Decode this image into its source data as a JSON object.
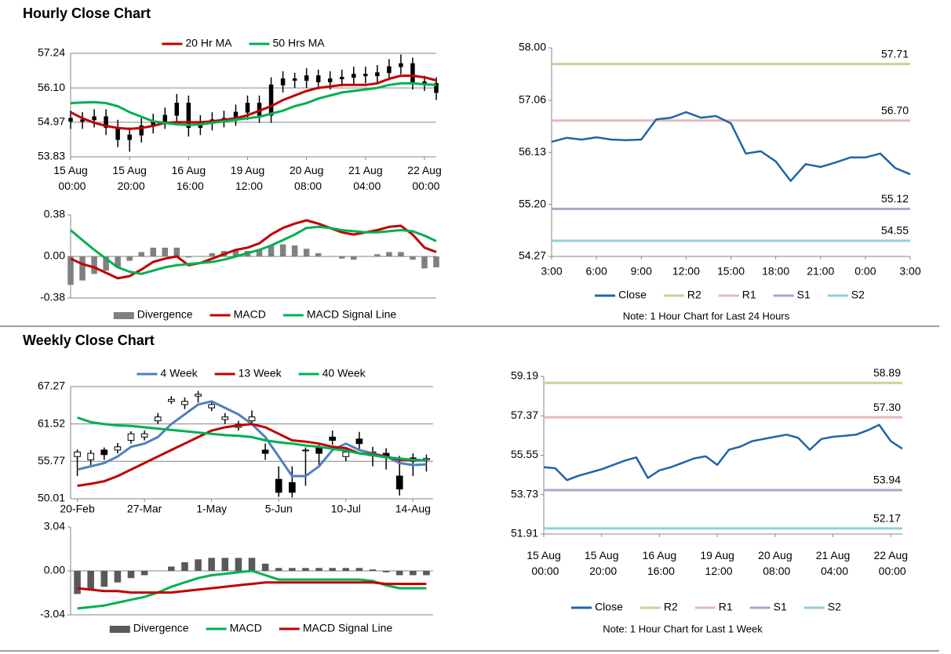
{
  "sections": [
    {
      "title": "Hourly Close Chart"
    },
    {
      "title": "Weekly Close Chart"
    }
  ],
  "chart_data": [
    {
      "type": "candlestick",
      "grid": true,
      "up_color": "#000000",
      "down_color": "#000000",
      "categories": [
        "15 Aug 00:00",
        null,
        null,
        null,
        null,
        "15 Aug 20:00",
        null,
        null,
        null,
        null,
        "16 Aug 16:00",
        null,
        null,
        null,
        null,
        "19 Aug 12:00",
        null,
        null,
        null,
        null,
        "20 Aug 08:00",
        null,
        null,
        null,
        null,
        "21 Aug 04:00",
        null,
        null,
        null,
        null,
        "22 Aug 00:00",
        null
      ],
      "open": [
        55.1,
        55.0,
        55.05,
        55.15,
        54.8,
        54.4,
        54.55,
        54.85,
        55.0,
        55.2,
        55.6,
        54.8,
        54.95,
        55.05,
        55.1,
        55.3,
        55.6,
        55.2,
        56.2,
        56.4,
        56.35,
        56.5,
        56.3,
        56.4,
        56.45,
        56.55,
        56.5,
        56.6,
        56.8,
        56.9,
        56.3,
        56.25
      ],
      "high": [
        55.35,
        55.3,
        55.4,
        55.4,
        55.05,
        54.8,
        55.1,
        55.25,
        55.45,
        55.9,
        55.85,
        55.2,
        55.3,
        55.35,
        55.55,
        55.85,
        55.85,
        56.45,
        56.65,
        56.6,
        56.75,
        56.7,
        56.65,
        56.7,
        56.8,
        56.8,
        56.85,
        57.05,
        57.2,
        57.1,
        56.5,
        56.45
      ],
      "low": [
        54.75,
        54.75,
        54.8,
        54.55,
        54.15,
        54.0,
        54.3,
        54.6,
        54.75,
        54.95,
        54.5,
        54.55,
        54.7,
        54.8,
        54.85,
        55.05,
        54.95,
        54.95,
        55.95,
        56.1,
        56.1,
        56.05,
        56.05,
        56.15,
        56.2,
        56.25,
        56.25,
        56.35,
        56.55,
        56.05,
        56.0,
        55.7
      ],
      "close": [
        55.0,
        55.05,
        55.15,
        54.8,
        54.4,
        54.55,
        54.85,
        55.0,
        55.2,
        55.6,
        54.8,
        54.95,
        55.05,
        55.1,
        55.3,
        55.6,
        55.2,
        56.2,
        56.4,
        56.35,
        56.5,
        56.3,
        56.4,
        56.45,
        56.55,
        56.5,
        56.6,
        56.8,
        56.9,
        56.3,
        56.25,
        55.95
      ],
      "series": [
        {
          "name": "20 Hr MA",
          "color": "#c00000",
          "values": [
            55.3,
            55.1,
            54.95,
            54.85,
            54.78,
            54.75,
            54.78,
            54.85,
            54.95,
            54.97,
            54.97,
            54.97,
            55.0,
            55.05,
            55.1,
            55.2,
            55.35,
            55.5,
            55.7,
            55.85,
            56.0,
            56.1,
            56.15,
            56.2,
            56.2,
            56.2,
            56.25,
            56.4,
            56.5,
            56.5,
            56.45,
            56.35
          ]
        },
        {
          "name": "50 Hrs MA",
          "color": "#00b050",
          "values": [
            55.6,
            55.62,
            55.63,
            55.6,
            55.5,
            55.3,
            55.15,
            55.0,
            54.95,
            54.9,
            54.88,
            54.9,
            54.95,
            55.0,
            55.05,
            55.1,
            55.15,
            55.25,
            55.35,
            55.5,
            55.6,
            55.75,
            55.85,
            55.95,
            56.0,
            56.05,
            56.1,
            56.2,
            56.25,
            56.25,
            56.22,
            56.2
          ]
        }
      ],
      "ylim": [
        53.83,
        57.24
      ],
      "yticks": [
        53.83,
        54.97,
        {
          "value": 56.1,
          "label": "56.10"
        },
        57.24
      ]
    },
    {
      "type": "combo",
      "grid": false,
      "series": [
        {
          "name": "Divergence",
          "mark": "bar",
          "color": "#808080",
          "values": [
            -0.26,
            -0.22,
            -0.16,
            -0.13,
            -0.1,
            -0.04,
            0.04,
            0.08,
            0.08,
            0.08,
            -0.01,
            0.0,
            0.03,
            0.05,
            0.06,
            0.05,
            0.06,
            0.1,
            0.11,
            0.1,
            0.07,
            0.03,
            0.0,
            -0.02,
            -0.03,
            0.0,
            0.02,
            0.04,
            0.04,
            -0.03,
            -0.11,
            -0.1
          ]
        },
        {
          "name": "MACD",
          "mark": "line",
          "color": "#c00000",
          "values": [
            -0.02,
            -0.07,
            -0.1,
            -0.15,
            -0.2,
            -0.18,
            -0.12,
            -0.05,
            -0.02,
            0.0,
            -0.08,
            -0.06,
            -0.02,
            0.02,
            0.06,
            0.08,
            0.12,
            0.2,
            0.26,
            0.3,
            0.33,
            0.3,
            0.26,
            0.22,
            0.2,
            0.22,
            0.24,
            0.27,
            0.28,
            0.2,
            0.08,
            0.04
          ]
        },
        {
          "name": "MACD Signal Line",
          "mark": "line",
          "color": "#00b050",
          "values": [
            0.24,
            0.15,
            0.06,
            -0.02,
            -0.1,
            -0.14,
            -0.16,
            -0.13,
            -0.1,
            -0.08,
            -0.07,
            -0.06,
            -0.05,
            -0.03,
            0.0,
            0.03,
            0.06,
            0.1,
            0.15,
            0.2,
            0.26,
            0.27,
            0.26,
            0.24,
            0.23,
            0.22,
            0.22,
            0.23,
            0.24,
            0.23,
            0.19,
            0.14
          ]
        }
      ],
      "ylim": [
        -0.38,
        0.38
      ],
      "yticks": [
        -0.38,
        {
          "value": 0,
          "label": "0.00"
        },
        0.38
      ]
    },
    {
      "type": "line",
      "grid": false,
      "categories": [
        "3:00",
        null,
        null,
        "6:00",
        null,
        null,
        "9:00",
        null,
        null,
        "12:00",
        null,
        null,
        "15:00",
        null,
        null,
        "18:00",
        null,
        null,
        "21:00",
        null,
        null,
        "0:00",
        null,
        null,
        "3:00"
      ],
      "series": [
        {
          "name": "Close",
          "color": "#1f65a8",
          "values": [
            56.32,
            56.39,
            56.36,
            56.4,
            56.36,
            56.35,
            56.36,
            56.72,
            56.75,
            56.85,
            56.75,
            56.78,
            56.65,
            56.11,
            56.15,
            55.97,
            55.62,
            55.92,
            55.87,
            55.95,
            56.04,
            56.04,
            56.11,
            55.85,
            55.74
          ]
        }
      ],
      "levels": [
        {
          "name": "R2",
          "color": "#c3d69b",
          "value": 57.71,
          "value_label": "57.71"
        },
        {
          "name": "R1",
          "color": "#e6b9b8",
          "value": 56.7,
          "value_label": "56.70"
        },
        {
          "name": "S1",
          "color": "#b3a2c7",
          "value": 55.12,
          "value_label": "55.12"
        },
        {
          "name": "S2",
          "color": "#93cddd",
          "value": 54.55,
          "value_label": "54.55"
        }
      ],
      "note": "Note: 1 Hour Chart for Last 24 Hours",
      "ylim": [
        54.27,
        58.0
      ],
      "yticks": [
        54.27,
        {
          "value": 55.2,
          "label": "55.20"
        },
        56.13,
        57.06,
        {
          "value": 58,
          "label": "58.00"
        }
      ]
    },
    {
      "type": "candlestick",
      "grid": true,
      "up_color": "#ffffff",
      "down_color": "#000000",
      "categories": [
        "20-Feb",
        null,
        null,
        null,
        null,
        "27-Mar",
        null,
        null,
        null,
        null,
        "1-May",
        null,
        null,
        null,
        null,
        "5-Jun",
        null,
        null,
        null,
        null,
        "10-Jul",
        null,
        null,
        null,
        null,
        "14-Aug",
        null
      ],
      "open": [
        56.5,
        56.0,
        57.5,
        57.5,
        59.0,
        59.5,
        62.0,
        65.0,
        64.5,
        65.8,
        64.0,
        62.2,
        61.0,
        62.0,
        57.5,
        53.0,
        52.5,
        57.5,
        57.8,
        59.5,
        56.5,
        59.2,
        57.2,
        57.0,
        53.5,
        56.3,
        56.0
      ],
      "high": [
        57.6,
        57.5,
        57.9,
        58.6,
        60.4,
        60.5,
        63.2,
        65.8,
        65.6,
        66.6,
        65.0,
        63.2,
        62.0,
        63.6,
        58.5,
        55.0,
        55.0,
        57.9,
        58.3,
        60.5,
        58.0,
        60.3,
        58.0,
        57.8,
        56.6,
        57.0,
        56.8
      ],
      "low": [
        53.5,
        55.2,
        56.0,
        57.0,
        58.5,
        59.0,
        61.5,
        64.6,
        63.8,
        64.8,
        63.5,
        61.5,
        60.5,
        61.5,
        56.0,
        50.3,
        50.2,
        52.0,
        55.0,
        58.3,
        55.8,
        57.5,
        55.0,
        54.5,
        50.5,
        53.5,
        54.2
      ],
      "close": [
        57.2,
        57.0,
        56.8,
        58.0,
        60.0,
        60.0,
        62.6,
        65.3,
        65.0,
        66.1,
        64.5,
        62.6,
        61.5,
        62.6,
        57.0,
        51.0,
        51.0,
        57.5,
        57.0,
        59.0,
        57.2,
        58.5,
        56.6,
        56.4,
        51.5,
        55.8,
        56.2
      ],
      "series": [
        {
          "name": "4 Week",
          "color": "#4f81bd",
          "values": [
            54.5,
            55.0,
            55.5,
            56.5,
            58.0,
            58.5,
            59.5,
            61.5,
            63.0,
            64.5,
            65.0,
            64.0,
            63.0,
            61.5,
            59.5,
            56.5,
            53.5,
            53.5,
            55.0,
            57.5,
            58.5,
            57.5,
            57.0,
            56.5,
            55.5,
            55.2,
            55.3
          ]
        },
        {
          "name": "13 Week",
          "color": "#c00000",
          "values": [
            52.0,
            52.3,
            52.7,
            53.5,
            54.5,
            55.5,
            56.5,
            57.5,
            58.5,
            59.5,
            60.5,
            61.0,
            61.3,
            61.5,
            61.0,
            60.0,
            59.0,
            58.8,
            58.5,
            58.0,
            57.8,
            57.0,
            56.8,
            56.5,
            56.0,
            56.0,
            55.9
          ]
        },
        {
          "name": "40 Week",
          "color": "#00b050",
          "values": [
            62.5,
            61.8,
            61.5,
            61.3,
            61.2,
            61.0,
            60.8,
            60.6,
            60.4,
            60.2,
            60.0,
            59.8,
            59.7,
            59.5,
            59.0,
            58.7,
            58.5,
            58.2,
            58.0,
            57.7,
            57.4,
            57.0,
            56.7,
            56.4,
            56.2,
            56.0,
            55.9
          ]
        }
      ],
      "ylim": [
        50.01,
        67.27
      ],
      "yticks": [
        50.01,
        55.77,
        61.52,
        67.27
      ]
    },
    {
      "type": "combo",
      "grid": false,
      "series": [
        {
          "name": "Divergence",
          "mark": "bar",
          "color": "#595959",
          "values": [
            -1.6,
            -1.3,
            -1.1,
            -0.8,
            -0.5,
            -0.3,
            0.0,
            0.3,
            0.6,
            0.8,
            0.9,
            0.9,
            0.9,
            0.9,
            0.5,
            0.2,
            0.2,
            0.2,
            0.2,
            0.2,
            0.2,
            0.2,
            0.1,
            -0.1,
            -0.3,
            -0.3,
            -0.3
          ]
        },
        {
          "name": "MACD",
          "mark": "line",
          "color": "#00b050",
          "values": [
            -2.6,
            -2.5,
            -2.4,
            -2.2,
            -2.0,
            -1.8,
            -1.5,
            -1.1,
            -0.8,
            -0.5,
            -0.3,
            -0.2,
            -0.1,
            0.0,
            -0.3,
            -0.6,
            -0.6,
            -0.6,
            -0.6,
            -0.6,
            -0.6,
            -0.6,
            -0.7,
            -1.0,
            -1.2,
            -1.2,
            -1.2
          ]
        },
        {
          "name": "MACD Signal Line",
          "mark": "line",
          "color": "#c00000",
          "values": [
            -1.2,
            -1.3,
            -1.4,
            -1.4,
            -1.5,
            -1.5,
            -1.5,
            -1.5,
            -1.4,
            -1.3,
            -1.2,
            -1.1,
            -1.0,
            -0.9,
            -0.8,
            -0.8,
            -0.8,
            -0.8,
            -0.8,
            -0.8,
            -0.8,
            -0.8,
            -0.8,
            -0.9,
            -0.9,
            -0.9,
            -0.9
          ]
        }
      ],
      "ylim": [
        -3.04,
        3.04
      ],
      "yticks": [
        -3.04,
        {
          "value": 0,
          "label": "0.00"
        },
        3.04
      ]
    },
    {
      "type": "line",
      "grid": false,
      "categories": [
        "15 Aug 00:00",
        null,
        null,
        null,
        null,
        "15 Aug 20:00",
        null,
        null,
        null,
        null,
        "16 Aug 16:00",
        null,
        null,
        null,
        null,
        "19 Aug 12:00",
        null,
        null,
        null,
        null,
        "20 Aug 08:00",
        null,
        null,
        null,
        null,
        "21 Aug 04:00",
        null,
        null,
        null,
        null,
        "22 Aug 00:00",
        null
      ],
      "series": [
        {
          "name": "Close",
          "color": "#1f65a8",
          "values": [
            55.0,
            54.95,
            54.4,
            54.6,
            54.75,
            54.9,
            55.1,
            55.3,
            55.45,
            54.5,
            54.85,
            55.0,
            55.2,
            55.4,
            55.5,
            55.1,
            55.8,
            55.95,
            56.2,
            56.3,
            56.4,
            56.5,
            56.35,
            55.8,
            56.3,
            56.4,
            56.45,
            56.5,
            56.7,
            56.95,
            56.2,
            55.85
          ]
        }
      ],
      "levels": [
        {
          "name": "R2",
          "color": "#c3d69b",
          "value": 58.89,
          "value_label": "58.89"
        },
        {
          "name": "R1",
          "color": "#e6b9b8",
          "value": 57.3,
          "value_label": "57.30"
        },
        {
          "name": "S1",
          "color": "#b3a2c7",
          "value": 53.94,
          "value_label": "53.94"
        },
        {
          "name": "S2",
          "color": "#93cddd",
          "value": 52.17,
          "value_label": "52.17"
        }
      ],
      "note": "Note: 1 Hour Chart for Last 1 Week",
      "ylim": [
        51.91,
        59.19
      ],
      "yticks": [
        51.91,
        53.73,
        55.55,
        57.37,
        59.19
      ]
    }
  ]
}
